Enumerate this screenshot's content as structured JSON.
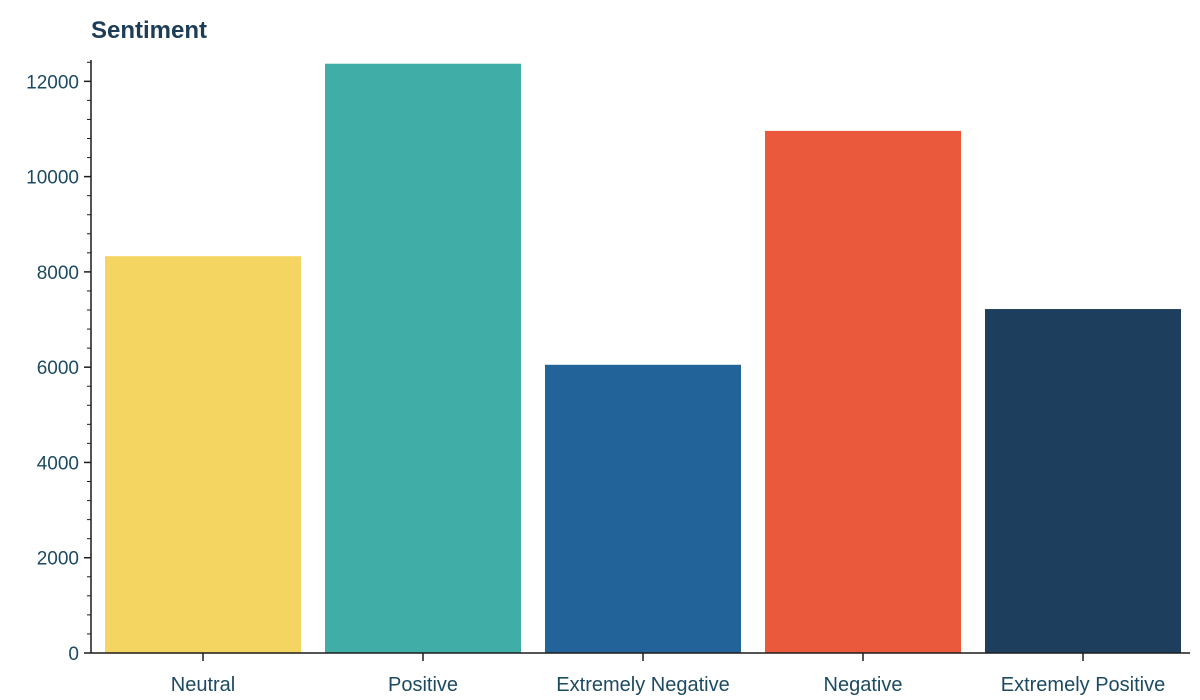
{
  "chart_data": {
    "type": "bar",
    "title": "Sentiment",
    "xlabel": "",
    "ylabel": "",
    "categories": [
      "Neutral",
      "Positive",
      "Extremely Negative",
      "Negative",
      "Extremely Positive"
    ],
    "values": [
      8330,
      12370,
      6050,
      10960,
      7220
    ],
    "colors": [
      "#f5d561",
      "#40aea6",
      "#22649a",
      "#eb593d",
      "#1d3f5d"
    ],
    "ylim": [
      0,
      12700
    ],
    "yticks": [
      0,
      2000,
      4000,
      6000,
      8000,
      10000,
      12000
    ],
    "ytick_labels": [
      "0",
      "2000",
      "4000",
      "6000",
      "8000",
      "10000",
      "12000"
    ],
    "grid": false,
    "legend": "none"
  }
}
